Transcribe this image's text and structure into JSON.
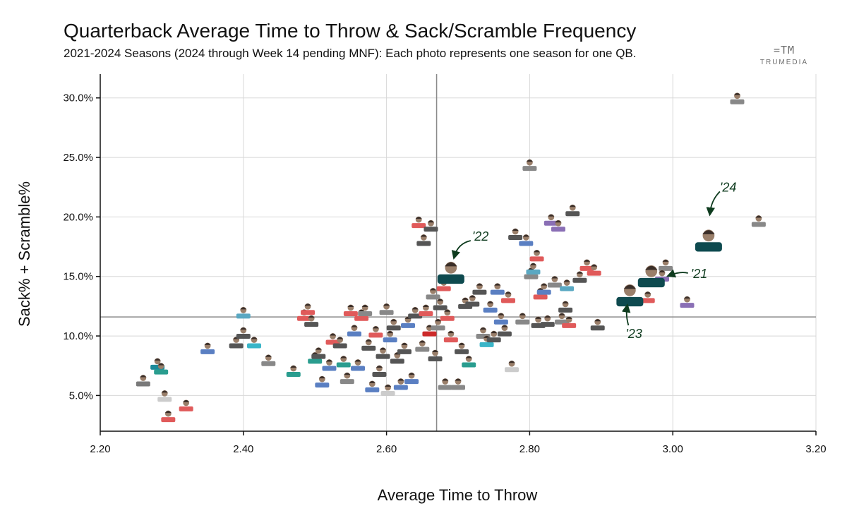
{
  "header": {
    "title": "Quarterback Average Time to Throw & Sack/Scramble Frequency",
    "subtitle": "2021-2024 Seasons (2024 through Week 14 pending MNF): Each photo represents one season for one QB."
  },
  "logo": {
    "mark": "=TM",
    "name": "TRUMEDIA"
  },
  "colors": {
    "highlight": "#0e4a4f",
    "grid": "#d8d8d8",
    "axis": "#111111",
    "annotation": "#0e3b1e"
  },
  "chart_data": {
    "type": "scatter",
    "xlabel": "Average Time to Throw",
    "ylabel": "Sack% + Scramble%",
    "xlim": [
      2.2,
      3.2
    ],
    "ylim": [
      2.0,
      32.0
    ],
    "xticks": [
      "2.20",
      "2.40",
      "2.60",
      "2.80",
      "3.00",
      "3.20"
    ],
    "yticks": [
      "5.0%",
      "10.0%",
      "15.0%",
      "20.0%",
      "25.0%",
      "30.0%"
    ],
    "xtick_values": [
      2.2,
      2.4,
      2.6,
      2.8,
      3.0,
      3.2
    ],
    "ytick_values": [
      5,
      10,
      15,
      20,
      25,
      30
    ],
    "reference_lines": {
      "x_mean": 2.67,
      "y_mean": 11.6
    },
    "highlighted": [
      {
        "label": "'21",
        "x": 2.97,
        "y": 15.1,
        "color": "#0e4a4f"
      },
      {
        "label": "'22",
        "x": 2.69,
        "y": 15.4,
        "color": "#0e4a4f"
      },
      {
        "label": "'23",
        "x": 2.94,
        "y": 13.5,
        "color": "#0e4a4f"
      },
      {
        "label": "'24",
        "x": 3.05,
        "y": 18.1,
        "color": "#0e4a4f"
      }
    ],
    "others": [
      {
        "x": 2.26,
        "y": 6.3,
        "c": "#7a7a7a"
      },
      {
        "x": 2.28,
        "y": 7.7,
        "c": "#1d8a99"
      },
      {
        "x": 2.285,
        "y": 7.3,
        "c": "#2a9d8f"
      },
      {
        "x": 2.29,
        "y": 5.0,
        "c": "#cccccc"
      },
      {
        "x": 2.295,
        "y": 3.3,
        "c": "#e05a5a"
      },
      {
        "x": 2.32,
        "y": 4.2,
        "c": "#e05a5a"
      },
      {
        "x": 2.35,
        "y": 9.0,
        "c": "#5a7fc2"
      },
      {
        "x": 2.39,
        "y": 9.5,
        "c": "#555555"
      },
      {
        "x": 2.4,
        "y": 12.0,
        "c": "#5aa8c2"
      },
      {
        "x": 2.4,
        "y": 10.3,
        "c": "#555555"
      },
      {
        "x": 2.415,
        "y": 9.5,
        "c": "#3ab5c8"
      },
      {
        "x": 2.435,
        "y": 8.0,
        "c": "#888888"
      },
      {
        "x": 2.47,
        "y": 7.1,
        "c": "#2a9d8f"
      },
      {
        "x": 2.485,
        "y": 11.8,
        "c": "#e05a5a"
      },
      {
        "x": 2.49,
        "y": 12.3,
        "c": "#e05a5a"
      },
      {
        "x": 2.495,
        "y": 11.3,
        "c": "#555555"
      },
      {
        "x": 2.5,
        "y": 8.2,
        "c": "#2a9d8f"
      },
      {
        "x": 2.505,
        "y": 8.6,
        "c": "#555555"
      },
      {
        "x": 2.51,
        "y": 6.2,
        "c": "#5a7fc2"
      },
      {
        "x": 2.52,
        "y": 7.6,
        "c": "#5a7fc2"
      },
      {
        "x": 2.525,
        "y": 9.8,
        "c": "#e05a5a"
      },
      {
        "x": 2.535,
        "y": 9.5,
        "c": "#555555"
      },
      {
        "x": 2.54,
        "y": 7.9,
        "c": "#2a9d8f"
      },
      {
        "x": 2.545,
        "y": 6.5,
        "c": "#888888"
      },
      {
        "x": 2.55,
        "y": 12.2,
        "c": "#e05a5a"
      },
      {
        "x": 2.555,
        "y": 10.5,
        "c": "#5a7fc2"
      },
      {
        "x": 2.56,
        "y": 7.6,
        "c": "#5a7fc2"
      },
      {
        "x": 2.565,
        "y": 11.8,
        "c": "#e05a5a"
      },
      {
        "x": 2.57,
        "y": 12.2,
        "c": "#888888"
      },
      {
        "x": 2.575,
        "y": 9.3,
        "c": "#555555"
      },
      {
        "x": 2.58,
        "y": 5.8,
        "c": "#5a7fc2"
      },
      {
        "x": 2.585,
        "y": 10.4,
        "c": "#e05a5a"
      },
      {
        "x": 2.59,
        "y": 7.1,
        "c": "#555555"
      },
      {
        "x": 2.595,
        "y": 8.6,
        "c": "#555555"
      },
      {
        "x": 2.6,
        "y": 12.3,
        "c": "#888888"
      },
      {
        "x": 2.602,
        "y": 5.5,
        "c": "#cccccc"
      },
      {
        "x": 2.605,
        "y": 10.0,
        "c": "#5a7fc2"
      },
      {
        "x": 2.61,
        "y": 11.0,
        "c": "#555555"
      },
      {
        "x": 2.615,
        "y": 8.2,
        "c": "#555555"
      },
      {
        "x": 2.62,
        "y": 6.0,
        "c": "#5a7fc2"
      },
      {
        "x": 2.625,
        "y": 9.0,
        "c": "#555555"
      },
      {
        "x": 2.63,
        "y": 11.2,
        "c": "#5a7fc2"
      },
      {
        "x": 2.635,
        "y": 6.5,
        "c": "#5a7fc2"
      },
      {
        "x": 2.64,
        "y": 12.0,
        "c": "#555555"
      },
      {
        "x": 2.645,
        "y": 19.6,
        "c": "#e05a5a"
      },
      {
        "x": 2.65,
        "y": 9.2,
        "c": "#888888"
      },
      {
        "x": 2.652,
        "y": 18.1,
        "c": "#555555"
      },
      {
        "x": 2.655,
        "y": 12.2,
        "c": "#e05a5a"
      },
      {
        "x": 2.66,
        "y": 10.5,
        "c": "#cc2a2a"
      },
      {
        "x": 2.662,
        "y": 19.3,
        "c": "#555555"
      },
      {
        "x": 2.665,
        "y": 13.6,
        "c": "#888888"
      },
      {
        "x": 2.668,
        "y": 8.4,
        "c": "#555555"
      },
      {
        "x": 2.672,
        "y": 11.0,
        "c": "#888888"
      },
      {
        "x": 2.675,
        "y": 12.7,
        "c": "#555555"
      },
      {
        "x": 2.68,
        "y": 14.3,
        "c": "#e05a5a"
      },
      {
        "x": 2.682,
        "y": 6.0,
        "c": "#888888"
      },
      {
        "x": 2.685,
        "y": 11.8,
        "c": "#e05a5a"
      },
      {
        "x": 2.69,
        "y": 10.0,
        "c": "#e05a5a"
      },
      {
        "x": 2.7,
        "y": 6.0,
        "c": "#888888"
      },
      {
        "x": 2.705,
        "y": 9.0,
        "c": "#555555"
      },
      {
        "x": 2.71,
        "y": 12.8,
        "c": "#555555"
      },
      {
        "x": 2.715,
        "y": 7.9,
        "c": "#2a9d8f"
      },
      {
        "x": 2.72,
        "y": 13.0,
        "c": "#555555"
      },
      {
        "x": 2.73,
        "y": 14.0,
        "c": "#555555"
      },
      {
        "x": 2.735,
        "y": 10.3,
        "c": "#888888"
      },
      {
        "x": 2.74,
        "y": 9.6,
        "c": "#3ab5c8"
      },
      {
        "x": 2.745,
        "y": 12.5,
        "c": "#5a7fc2"
      },
      {
        "x": 2.75,
        "y": 10.0,
        "c": "#555555"
      },
      {
        "x": 2.755,
        "y": 14.0,
        "c": "#5a7fc2"
      },
      {
        "x": 2.76,
        "y": 11.5,
        "c": "#5a7fc2"
      },
      {
        "x": 2.765,
        "y": 10.5,
        "c": "#555555"
      },
      {
        "x": 2.77,
        "y": 13.3,
        "c": "#e05a5a"
      },
      {
        "x": 2.775,
        "y": 7.5,
        "c": "#cccccc"
      },
      {
        "x": 2.78,
        "y": 18.6,
        "c": "#555555"
      },
      {
        "x": 2.79,
        "y": 11.5,
        "c": "#888888"
      },
      {
        "x": 2.795,
        "y": 18.1,
        "c": "#5a7fc2"
      },
      {
        "x": 2.8,
        "y": 24.4,
        "c": "#888888"
      },
      {
        "x": 2.802,
        "y": 15.3,
        "c": "#888888"
      },
      {
        "x": 2.805,
        "y": 15.7,
        "c": "#5aa8c2"
      },
      {
        "x": 2.81,
        "y": 16.8,
        "c": "#e05a5a"
      },
      {
        "x": 2.812,
        "y": 11.2,
        "c": "#555555"
      },
      {
        "x": 2.815,
        "y": 13.6,
        "c": "#e05a5a"
      },
      {
        "x": 2.82,
        "y": 14.0,
        "c": "#5a7fc2"
      },
      {
        "x": 2.825,
        "y": 11.3,
        "c": "#555555"
      },
      {
        "x": 2.83,
        "y": 19.8,
        "c": "#8a6fb5"
      },
      {
        "x": 2.835,
        "y": 14.6,
        "c": "#888888"
      },
      {
        "x": 2.84,
        "y": 19.3,
        "c": "#8a6fb5"
      },
      {
        "x": 2.845,
        "y": 11.5,
        "c": "#888888"
      },
      {
        "x": 2.85,
        "y": 12.5,
        "c": "#555555"
      },
      {
        "x": 2.852,
        "y": 14.3,
        "c": "#5aa8c2"
      },
      {
        "x": 2.855,
        "y": 11.2,
        "c": "#e05a5a"
      },
      {
        "x": 2.86,
        "y": 20.6,
        "c": "#555555"
      },
      {
        "x": 2.87,
        "y": 15.0,
        "c": "#555555"
      },
      {
        "x": 2.88,
        "y": 16.0,
        "c": "#e05a5a"
      },
      {
        "x": 2.89,
        "y": 15.6,
        "c": "#e05a5a"
      },
      {
        "x": 2.895,
        "y": 11.0,
        "c": "#555555"
      },
      {
        "x": 2.965,
        "y": 13.3,
        "c": "#e05a5a"
      },
      {
        "x": 2.99,
        "y": 16.0,
        "c": "#888888"
      },
      {
        "x": 2.985,
        "y": 15.1,
        "c": "#8a6fb5"
      },
      {
        "x": 3.02,
        "y": 12.9,
        "c": "#8a6fb5"
      },
      {
        "x": 3.09,
        "y": 30.0,
        "c": "#888888"
      },
      {
        "x": 3.12,
        "y": 19.7,
        "c": "#888888"
      }
    ]
  }
}
